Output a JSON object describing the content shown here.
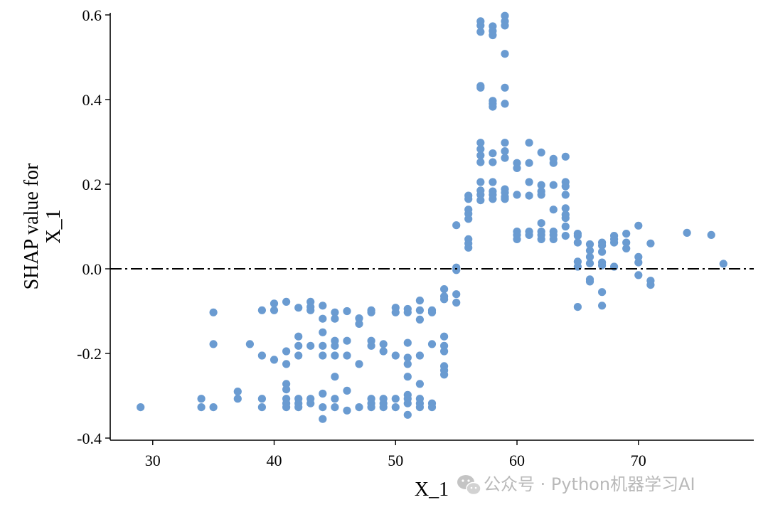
{
  "chart_data": {
    "type": "scatter",
    "title": "",
    "xlabel": "X_1",
    "ylabel": "SHAP value for\nX_1",
    "ylabel_lines": [
      "SHAP value for",
      "X_1"
    ],
    "xlim": [
      26.5,
      79.5
    ],
    "ylim": [
      -0.405,
      0.605
    ],
    "xticks": [
      30,
      40,
      50,
      60,
      70
    ],
    "yticks": [
      -0.4,
      -0.2,
      0.0,
      0.2,
      0.4,
      0.6
    ],
    "ytick_labels": [
      "-0.4",
      "-0.2",
      "0.0",
      "0.2",
      "0.4",
      "0.6"
    ],
    "grid": false,
    "marker_color": "#6a9bd1",
    "reference_line": {
      "y": 0.0,
      "style": "dash-dot",
      "color": "#000000"
    },
    "points": [
      [
        29,
        -0.327
      ],
      [
        34,
        -0.307
      ],
      [
        34,
        -0.327
      ],
      [
        35,
        -0.103
      ],
      [
        35,
        -0.178
      ],
      [
        35,
        -0.327
      ],
      [
        37,
        -0.29
      ],
      [
        37,
        -0.307
      ],
      [
        38,
        -0.178
      ],
      [
        39,
        -0.098
      ],
      [
        39,
        -0.205
      ],
      [
        39,
        -0.307
      ],
      [
        39,
        -0.327
      ],
      [
        40,
        -0.082
      ],
      [
        40,
        -0.098
      ],
      [
        40,
        -0.215
      ],
      [
        41,
        -0.078
      ],
      [
        41,
        -0.195
      ],
      [
        41,
        -0.225
      ],
      [
        41,
        -0.272
      ],
      [
        41,
        -0.285
      ],
      [
        41,
        -0.307
      ],
      [
        41,
        -0.318
      ],
      [
        41,
        -0.327
      ],
      [
        42,
        -0.092
      ],
      [
        42,
        -0.16
      ],
      [
        42,
        -0.182
      ],
      [
        42,
        -0.205
      ],
      [
        42,
        -0.307
      ],
      [
        42,
        -0.318
      ],
      [
        42,
        -0.327
      ],
      [
        43,
        -0.078
      ],
      [
        43,
        -0.09
      ],
      [
        43,
        -0.098
      ],
      [
        43,
        -0.182
      ],
      [
        43,
        -0.307
      ],
      [
        43,
        -0.318
      ],
      [
        44,
        -0.087
      ],
      [
        44,
        -0.118
      ],
      [
        44,
        -0.15
      ],
      [
        44,
        -0.182
      ],
      [
        44,
        -0.205
      ],
      [
        44,
        -0.295
      ],
      [
        44,
        -0.327
      ],
      [
        44,
        -0.355
      ],
      [
        45,
        -0.103
      ],
      [
        45,
        -0.118
      ],
      [
        45,
        -0.17
      ],
      [
        45,
        -0.182
      ],
      [
        45,
        -0.205
      ],
      [
        45,
        -0.255
      ],
      [
        45,
        -0.307
      ],
      [
        45,
        -0.327
      ],
      [
        46,
        -0.1
      ],
      [
        46,
        -0.17
      ],
      [
        46,
        -0.205
      ],
      [
        46,
        -0.288
      ],
      [
        46,
        -0.335
      ],
      [
        47,
        -0.117
      ],
      [
        47,
        -0.13
      ],
      [
        47,
        -0.225
      ],
      [
        47,
        -0.327
      ],
      [
        48,
        -0.098
      ],
      [
        48,
        -0.103
      ],
      [
        48,
        -0.17
      ],
      [
        48,
        -0.182
      ],
      [
        48,
        -0.307
      ],
      [
        48,
        -0.318
      ],
      [
        48,
        -0.327
      ],
      [
        49,
        -0.178
      ],
      [
        49,
        -0.195
      ],
      [
        49,
        -0.307
      ],
      [
        49,
        -0.318
      ],
      [
        49,
        -0.327
      ],
      [
        50,
        -0.092
      ],
      [
        50,
        -0.103
      ],
      [
        50,
        -0.205
      ],
      [
        50,
        -0.307
      ],
      [
        50,
        -0.327
      ],
      [
        51,
        -0.095
      ],
      [
        51,
        -0.103
      ],
      [
        51,
        -0.175
      ],
      [
        51,
        -0.21
      ],
      [
        51,
        -0.225
      ],
      [
        51,
        -0.255
      ],
      [
        51,
        -0.298
      ],
      [
        51,
        -0.307
      ],
      [
        51,
        -0.318
      ],
      [
        51,
        -0.345
      ],
      [
        52,
        -0.075
      ],
      [
        52,
        -0.098
      ],
      [
        52,
        -0.12
      ],
      [
        52,
        -0.205
      ],
      [
        52,
        -0.272
      ],
      [
        52,
        -0.307
      ],
      [
        52,
        -0.318
      ],
      [
        52,
        -0.327
      ],
      [
        53,
        -0.098
      ],
      [
        53,
        -0.103
      ],
      [
        53,
        -0.178
      ],
      [
        53,
        -0.318
      ],
      [
        53,
        -0.327
      ],
      [
        54,
        -0.048
      ],
      [
        54,
        -0.065
      ],
      [
        54,
        -0.072
      ],
      [
        54,
        -0.16
      ],
      [
        54,
        -0.182
      ],
      [
        54,
        -0.195
      ],
      [
        54,
        -0.23
      ],
      [
        54,
        -0.24
      ],
      [
        54,
        -0.25
      ],
      [
        55,
        0.103
      ],
      [
        55,
        0.003
      ],
      [
        55,
        -0.003
      ],
      [
        55,
        -0.06
      ],
      [
        55,
        -0.08
      ],
      [
        56,
        0.173
      ],
      [
        56,
        0.165
      ],
      [
        56,
        0.14
      ],
      [
        56,
        0.13
      ],
      [
        56,
        0.118
      ],
      [
        56,
        0.07
      ],
      [
        56,
        0.06
      ],
      [
        56,
        0.05
      ],
      [
        57,
        0.585
      ],
      [
        57,
        0.575
      ],
      [
        57,
        0.56
      ],
      [
        57,
        0.432
      ],
      [
        57,
        0.428
      ],
      [
        57,
        0.298
      ],
      [
        57,
        0.283
      ],
      [
        57,
        0.268
      ],
      [
        57,
        0.252
      ],
      [
        57,
        0.205
      ],
      [
        57,
        0.185
      ],
      [
        57,
        0.175
      ],
      [
        57,
        0.162
      ],
      [
        58,
        0.573
      ],
      [
        58,
        0.562
      ],
      [
        58,
        0.552
      ],
      [
        58,
        0.397
      ],
      [
        58,
        0.39
      ],
      [
        58,
        0.383
      ],
      [
        58,
        0.273
      ],
      [
        58,
        0.252
      ],
      [
        58,
        0.205
      ],
      [
        58,
        0.183
      ],
      [
        58,
        0.175
      ],
      [
        58,
        0.165
      ],
      [
        59,
        0.598
      ],
      [
        59,
        0.585
      ],
      [
        59,
        0.575
      ],
      [
        59,
        0.508
      ],
      [
        59,
        0.428
      ],
      [
        59,
        0.39
      ],
      [
        59,
        0.298
      ],
      [
        59,
        0.278
      ],
      [
        59,
        0.262
      ],
      [
        59,
        0.188
      ],
      [
        59,
        0.18
      ],
      [
        59,
        0.17
      ],
      [
        59,
        0.165
      ],
      [
        60,
        0.25
      ],
      [
        60,
        0.238
      ],
      [
        60,
        0.175
      ],
      [
        60,
        0.088
      ],
      [
        60,
        0.08
      ],
      [
        60,
        0.07
      ],
      [
        61,
        0.298
      ],
      [
        61,
        0.25
      ],
      [
        61,
        0.205
      ],
      [
        61,
        0.173
      ],
      [
        61,
        0.088
      ],
      [
        61,
        0.08
      ],
      [
        62,
        0.275
      ],
      [
        62,
        0.198
      ],
      [
        62,
        0.183
      ],
      [
        62,
        0.175
      ],
      [
        62,
        0.108
      ],
      [
        62,
        0.088
      ],
      [
        62,
        0.08
      ],
      [
        62,
        0.07
      ],
      [
        63,
        0.26
      ],
      [
        63,
        0.25
      ],
      [
        63,
        0.198
      ],
      [
        63,
        0.14
      ],
      [
        63,
        0.088
      ],
      [
        63,
        0.08
      ],
      [
        63,
        0.07
      ],
      [
        64,
        0.265
      ],
      [
        64,
        0.205
      ],
      [
        64,
        0.195
      ],
      [
        64,
        0.175
      ],
      [
        64,
        0.143
      ],
      [
        64,
        0.128
      ],
      [
        64,
        0.12
      ],
      [
        64,
        0.1
      ],
      [
        64,
        0.078
      ],
      [
        65,
        0.083
      ],
      [
        65,
        0.078
      ],
      [
        65,
        0.062
      ],
      [
        65,
        0.017
      ],
      [
        65,
        0.005
      ],
      [
        65,
        -0.09
      ],
      [
        66,
        0.058
      ],
      [
        66,
        0.043
      ],
      [
        66,
        0.028
      ],
      [
        66,
        0.013
      ],
      [
        66,
        -0.025
      ],
      [
        66,
        -0.03
      ],
      [
        67,
        0.062
      ],
      [
        67,
        0.055
      ],
      [
        67,
        0.04
      ],
      [
        67,
        0.015
      ],
      [
        67,
        0.008
      ],
      [
        67,
        -0.055
      ],
      [
        67,
        -0.087
      ],
      [
        68,
        0.078
      ],
      [
        68,
        0.07
      ],
      [
        68,
        0.062
      ],
      [
        68,
        0.005
      ],
      [
        69,
        0.083
      ],
      [
        69,
        0.062
      ],
      [
        69,
        0.048
      ],
      [
        70,
        0.102
      ],
      [
        70,
        0.028
      ],
      [
        70,
        0.015
      ],
      [
        70,
        -0.015
      ],
      [
        71,
        0.06
      ],
      [
        71,
        -0.028
      ],
      [
        71,
        -0.038
      ],
      [
        74,
        0.085
      ],
      [
        76,
        0.08
      ],
      [
        77,
        0.012
      ]
    ]
  },
  "watermark": {
    "icon": "wechat-icon",
    "text": "公众号 · Python机器学习AI"
  }
}
